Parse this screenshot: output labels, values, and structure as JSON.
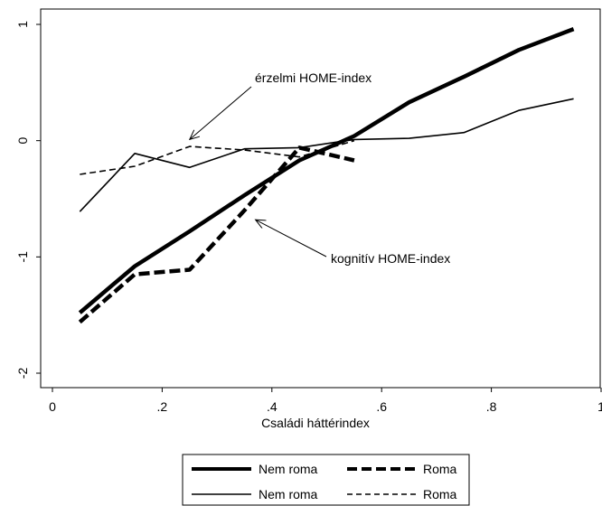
{
  "chart_data": {
    "type": "line",
    "title": "",
    "xlabel": "Családi háttérindex",
    "ylabel": "",
    "xlim": [
      0,
      1
    ],
    "ylim": [
      -2,
      1
    ],
    "x_ticks": [
      0,
      0.2,
      0.4,
      0.6,
      0.8,
      1
    ],
    "x_tick_labels": [
      "0",
      ".2",
      ".4",
      ".6",
      ".8",
      "1"
    ],
    "y_ticks": [
      -2,
      -1,
      0,
      1
    ],
    "y_tick_labels": [
      "-2",
      "-1",
      "0",
      "1"
    ],
    "grid": false,
    "legend_position": "bottom",
    "series": [
      {
        "name": "Nem roma",
        "style": "thick-solid",
        "x": [
          0.05,
          0.15,
          0.25,
          0.35,
          0.45,
          0.55,
          0.65,
          0.75,
          0.85,
          0.95
        ],
        "y": [
          -1.48,
          -1.08,
          -0.78,
          -0.47,
          -0.17,
          0.04,
          0.33,
          0.55,
          0.78,
          0.96
        ]
      },
      {
        "name": "Roma",
        "style": "thick-dashed",
        "x": [
          0.05,
          0.15,
          0.25,
          0.35,
          0.45,
          0.55
        ],
        "y": [
          -1.56,
          -1.15,
          -1.11,
          -0.6,
          -0.06,
          -0.17
        ]
      },
      {
        "name": "Nem roma",
        "style": "thin-solid",
        "x": [
          0.05,
          0.15,
          0.25,
          0.35,
          0.45,
          0.55,
          0.65,
          0.75,
          0.85,
          0.95
        ],
        "y": [
          -0.61,
          -0.11,
          -0.23,
          -0.07,
          -0.06,
          0.01,
          0.02,
          0.07,
          0.26,
          0.36
        ]
      },
      {
        "name": "Roma",
        "style": "thin-dashed",
        "x": [
          0.05,
          0.15,
          0.25,
          0.35,
          0.45,
          0.55
        ],
        "y": [
          -0.29,
          -0.22,
          -0.05,
          -0.08,
          -0.14,
          0.0
        ]
      }
    ],
    "annotations": [
      {
        "text": "érzelmi HOME-index",
        "target_x": 0.25,
        "target_y": 0.01
      },
      {
        "text": "kognitív HOME-index",
        "target_x": 0.37,
        "target_y": -0.68
      }
    ]
  }
}
